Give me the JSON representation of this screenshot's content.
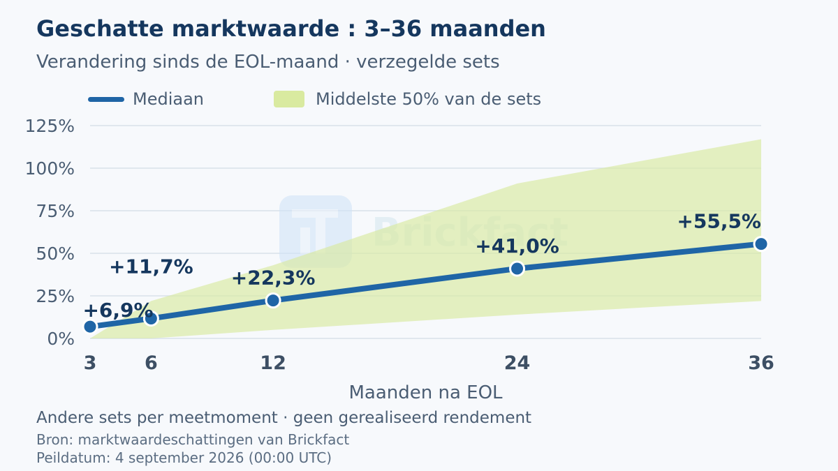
{
  "header": {
    "title": "Geschatte marktwaarde : 3–36 maanden",
    "subtitle": "Verandering sinds de EOL-maand · verzegelde sets"
  },
  "legend": {
    "median_label": "Mediaan",
    "band_label": "Middelste 50% van de sets"
  },
  "watermark": {
    "text": "Brickfact",
    "icon": "brickfact-logo-icon"
  },
  "colors": {
    "median": "#1f65a6",
    "band": "#d9eaa0",
    "title": "#15375e",
    "text": "#4a5d73",
    "grid": "#d8e1ea"
  },
  "chart_data": {
    "type": "line",
    "xlabel": "Maanden na EOL",
    "ylabel": "",
    "x": [
      3,
      6,
      12,
      24,
      36
    ],
    "xlim": [
      3,
      36
    ],
    "ylim": [
      0,
      125
    ],
    "y_ticks": [
      "0%",
      "25%",
      "50%",
      "75%",
      "100%",
      "125%"
    ],
    "y_tick_values": [
      0,
      25,
      50,
      75,
      100,
      125
    ],
    "x_tick_labels": [
      "3",
      "6",
      "12",
      "24",
      "36"
    ],
    "grid": true,
    "legend_position": "top-left",
    "series": [
      {
        "name": "Mediaan",
        "values": [
          6.9,
          11.7,
          22.3,
          41.0,
          55.5
        ],
        "labels": [
          "+6,9%",
          "+11,7%",
          "+22,3%",
          "+41,0%",
          "+55,5%"
        ]
      }
    ],
    "band": {
      "name": "Middelste 50% van de sets",
      "upper": [
        0,
        22,
        43,
        91,
        117
      ],
      "lower": [
        0,
        0,
        5,
        14,
        22
      ]
    }
  },
  "footer": {
    "note": "Andere sets per meetmoment · geen gerealiseerd rendement",
    "source": "Bron: marktwaardeschattingen van Brickfact",
    "as_of": "Peildatum: 4 september 2026 (00:00 UTC)"
  }
}
